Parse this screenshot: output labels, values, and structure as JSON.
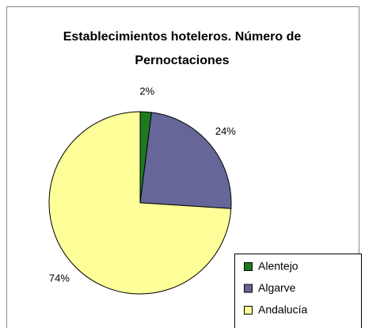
{
  "chart_data": {
    "type": "pie",
    "title": "Establecimientos hoteleros. Número de Pernoctaciones",
    "categories": [
      "Alentejo",
      "Algarve",
      "Andalucía"
    ],
    "values": [
      2,
      24,
      74
    ],
    "value_labels": [
      "2%",
      "24%",
      "74%"
    ],
    "colors": [
      "#1e7a1e",
      "#666699",
      "#ffff99"
    ],
    "legend": "bottom-right"
  }
}
